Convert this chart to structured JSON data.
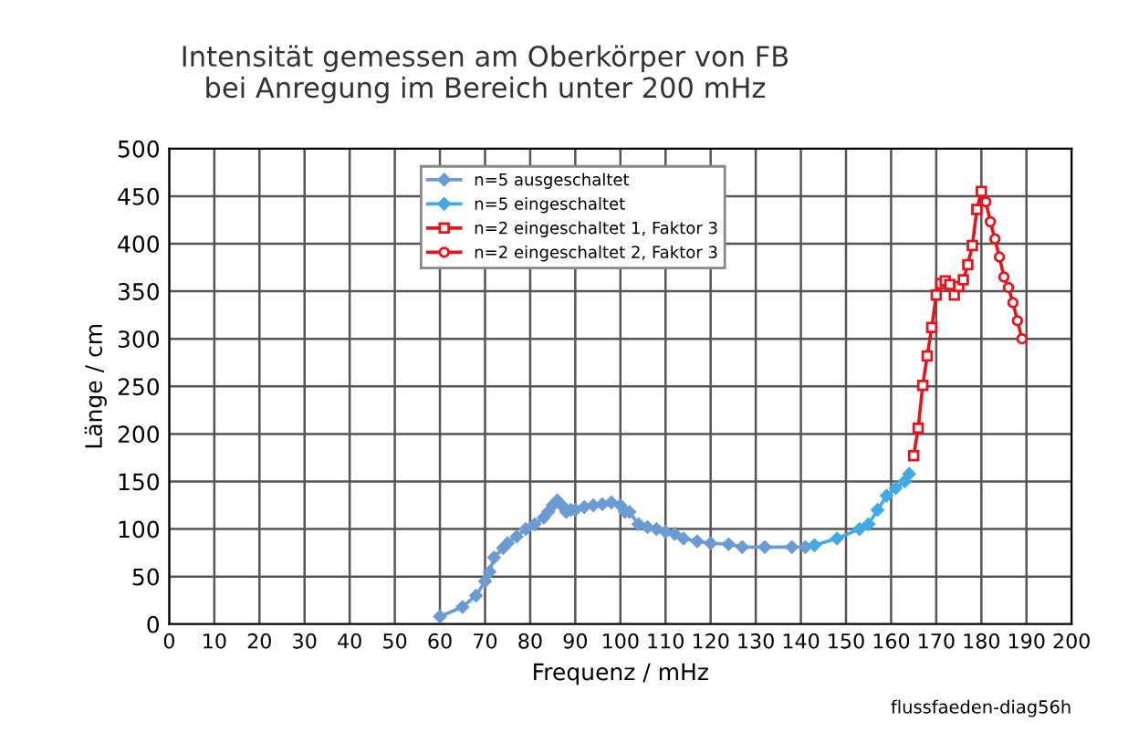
{
  "chart_data": {
    "type": "line",
    "title": "Intensität gemessen am Oberkörper von FB\nbei Anregung im Bereich unter 200 mHz",
    "xlabel": "Frequenz / mHz",
    "ylabel": "Länge / cm",
    "xlim": [
      0,
      200
    ],
    "xticks": [
      0,
      10,
      20,
      30,
      40,
      50,
      60,
      70,
      80,
      90,
      100,
      110,
      120,
      130,
      140,
      150,
      160,
      170,
      180,
      190,
      200
    ],
    "ylim": [
      0,
      500
    ],
    "yticks": [
      0,
      50,
      100,
      150,
      200,
      250,
      300,
      350,
      400,
      450,
      500
    ],
    "grid": true,
    "legend": "top",
    "annotations": [
      "flussfaeden-diag56h"
    ],
    "series": [
      {
        "name": "n=5 ausgeschaltet",
        "color": "#6b9bd2",
        "marker": "diamond",
        "x": [
          60,
          65,
          68,
          70,
          71,
          72,
          74,
          75,
          77,
          79,
          81,
          83,
          84,
          85,
          86,
          87,
          88,
          89,
          90,
          92,
          94,
          96,
          98,
          100,
          101,
          102,
          104,
          106,
          108,
          110,
          112,
          114,
          117,
          120,
          124,
          127,
          132,
          138,
          141
        ],
        "values": [
          8,
          18,
          30,
          45,
          55,
          70,
          80,
          85,
          92,
          100,
          105,
          112,
          118,
          125,
          130,
          125,
          118,
          120,
          120,
          123,
          125,
          126,
          128,
          125,
          118,
          118,
          105,
          102,
          100,
          97,
          95,
          90,
          87,
          85,
          84,
          81,
          81,
          81,
          81
        ]
      },
      {
        "name": "n=5 eingeschaltet",
        "color": "#41a9e6",
        "marker": "diamond",
        "x": [
          143,
          148,
          153,
          155,
          157,
          159,
          161,
          163,
          164
        ],
        "values": [
          83,
          90,
          100,
          105,
          120,
          135,
          143,
          150,
          158
        ]
      },
      {
        "name": "n=2 eingeschaltet 1, Faktor 3",
        "color": "#e8141c",
        "marker": "square",
        "x": [
          165,
          166,
          167,
          168,
          169,
          170,
          171,
          172,
          173,
          174,
          175,
          176,
          177,
          178,
          179,
          180
        ],
        "values": [
          177,
          206,
          251,
          282,
          312,
          346,
          358,
          361,
          357,
          346,
          355,
          362,
          378,
          398,
          436,
          455
        ]
      },
      {
        "name": "n=2 eingeschaltet 2, Faktor 3",
        "color": "#e8141c",
        "marker": "circle",
        "x": [
          181,
          182,
          183,
          184,
          185,
          186,
          187,
          188,
          189
        ],
        "values": [
          444,
          423,
          405,
          386,
          365,
          354,
          338,
          319,
          300
        ]
      }
    ]
  }
}
